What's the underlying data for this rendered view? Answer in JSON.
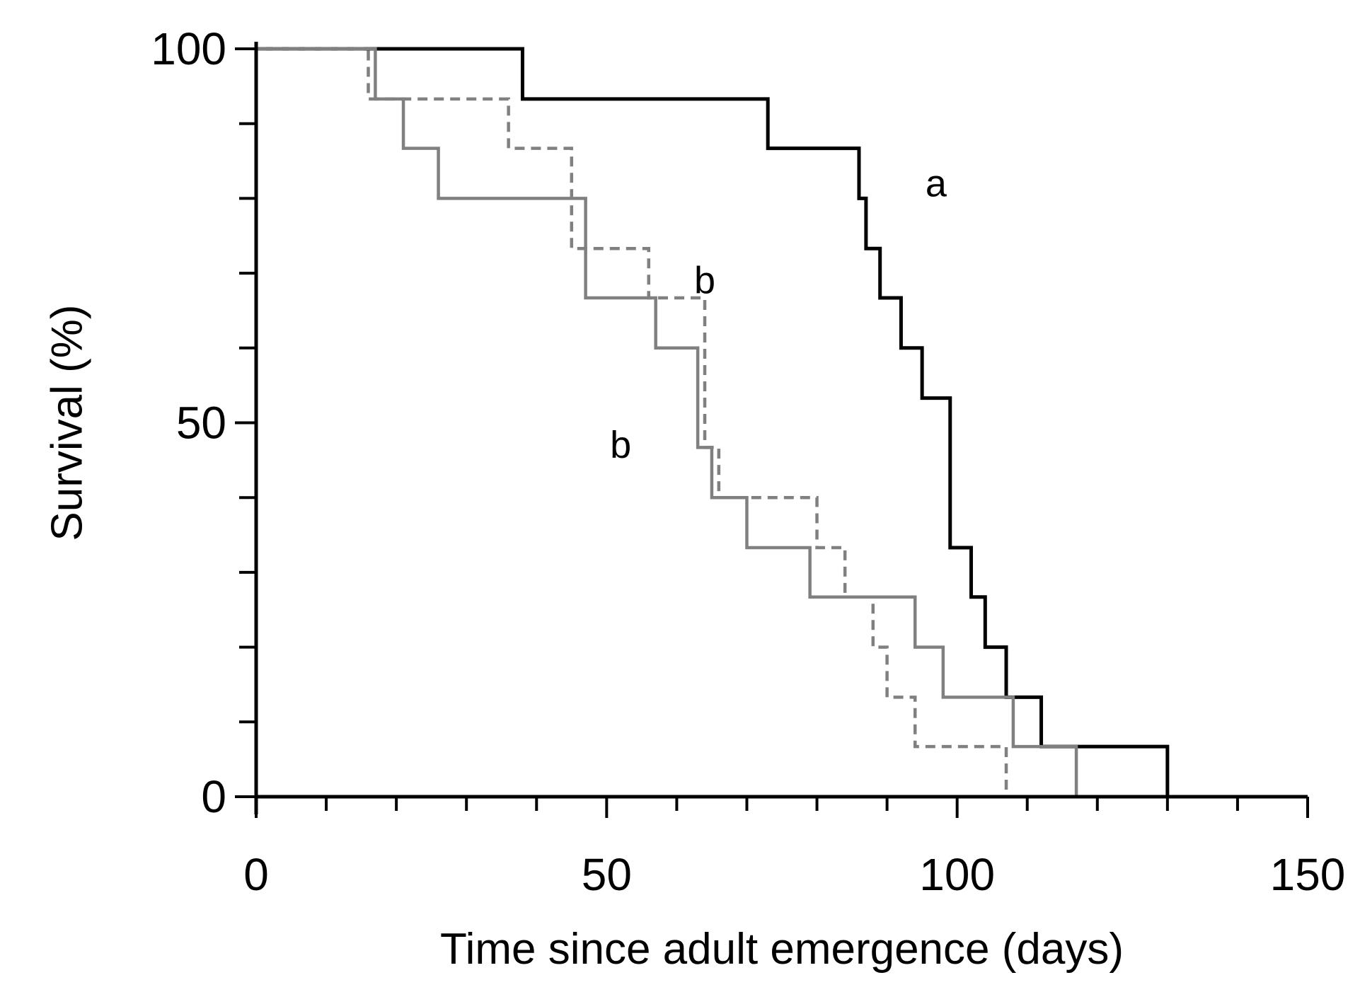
{
  "chart_data": {
    "type": "line",
    "step": true,
    "title": "",
    "xlabel": "Time since adult emergence (days)",
    "ylabel": "Survival (%)",
    "xlim": [
      0,
      150
    ],
    "ylim": [
      0,
      100
    ],
    "x_ticks": [
      "0",
      "50",
      "100",
      "150"
    ],
    "y_ticks": [
      "0",
      "50",
      "100"
    ],
    "grid": false,
    "legend": "none",
    "series": [
      {
        "color": "#000000",
        "dash": false,
        "x": [
          0,
          38,
          73,
          86,
          87,
          89,
          92,
          95,
          99,
          102,
          104,
          107,
          112,
          130
        ],
        "y": [
          100,
          93.3,
          86.7,
          80,
          73.3,
          66.7,
          60,
          53.3,
          33.3,
          26.7,
          20,
          13.3,
          6.7,
          0
        ]
      },
      {
        "color": "#808080",
        "dash": false,
        "x": [
          0,
          17,
          21,
          26,
          47,
          57,
          63,
          65,
          70,
          79,
          94,
          98,
          108,
          117
        ],
        "y": [
          100,
          93.3,
          86.7,
          80,
          66.7,
          60,
          46.7,
          40,
          33.3,
          26.7,
          20,
          13.3,
          6.7,
          0
        ]
      },
      {
        "color": "#808080",
        "dash": true,
        "x": [
          0,
          16,
          36,
          45,
          56,
          64,
          66,
          80,
          84,
          88,
          90,
          94,
          107
        ],
        "y": [
          100,
          93.3,
          86.7,
          73.3,
          66.7,
          46.7,
          40,
          33.3,
          26.7,
          20,
          13.3,
          6.7,
          0
        ]
      }
    ],
    "annotations": [
      {
        "text": "a",
        "x": 97,
        "y": 82
      },
      {
        "text": "b",
        "x": 64,
        "y": 69
      },
      {
        "text": "b",
        "x": 52,
        "y": 47
      }
    ]
  }
}
